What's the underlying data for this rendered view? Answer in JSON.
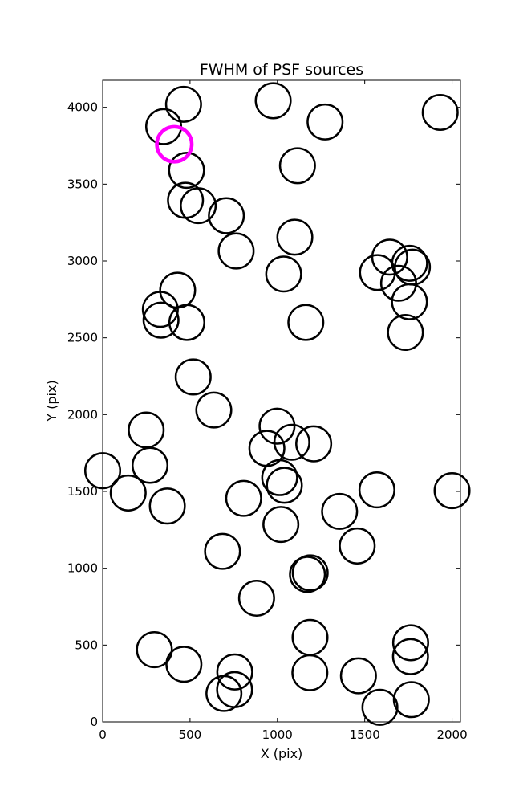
{
  "chart_data": {
    "type": "scatter",
    "title": "FWHM of PSF sources",
    "xlabel": "X (pix)",
    "ylabel": "Y (pix)",
    "xlim": [
      0,
      2048
    ],
    "ylim": [
      0,
      4176
    ],
    "xticks": [
      0,
      500,
      1000,
      1500,
      2000
    ],
    "yticks": [
      0,
      500,
      1000,
      1500,
      2000,
      2500,
      3000,
      3500,
      4000
    ],
    "xtick_labels": [
      "0",
      "500",
      "1000",
      "1500",
      "2000"
    ],
    "ytick_labels": [
      "0",
      "500",
      "1000",
      "1500",
      "2000",
      "2500",
      "3000",
      "3500",
      "4000"
    ],
    "grid": false,
    "marker": "open-circle",
    "circle_radius_x_units": 100,
    "colors": {
      "default": "#000000",
      "highlight": "#ff00ff"
    },
    "highlight": {
      "x": 410,
      "y": 3760
    },
    "points": [
      {
        "x": 463,
        "y": 4020
      },
      {
        "x": 976,
        "y": 4043
      },
      {
        "x": 1273,
        "y": 3905
      },
      {
        "x": 1932,
        "y": 3967
      },
      {
        "x": 349,
        "y": 3875
      },
      {
        "x": 480,
        "y": 3590
      },
      {
        "x": 1115,
        "y": 3620
      },
      {
        "x": 474,
        "y": 3395
      },
      {
        "x": 547,
        "y": 3360
      },
      {
        "x": 708,
        "y": 3295
      },
      {
        "x": 1100,
        "y": 3155
      },
      {
        "x": 764,
        "y": 3065
      },
      {
        "x": 1643,
        "y": 3025
      },
      {
        "x": 1757,
        "y": 2985
      },
      {
        "x": 1773,
        "y": 2960
      },
      {
        "x": 1573,
        "y": 2925
      },
      {
        "x": 1036,
        "y": 2915
      },
      {
        "x": 1694,
        "y": 2855
      },
      {
        "x": 429,
        "y": 2810
      },
      {
        "x": 1756,
        "y": 2735
      },
      {
        "x": 330,
        "y": 2685
      },
      {
        "x": 334,
        "y": 2615
      },
      {
        "x": 482,
        "y": 2600
      },
      {
        "x": 1163,
        "y": 2600
      },
      {
        "x": 1733,
        "y": 2535
      },
      {
        "x": 518,
        "y": 2245
      },
      {
        "x": 636,
        "y": 2030
      },
      {
        "x": 249,
        "y": 1900
      },
      {
        "x": 998,
        "y": 1925
      },
      {
        "x": 1083,
        "y": 1820
      },
      {
        "x": 1208,
        "y": 1810
      },
      {
        "x": 940,
        "y": 1780
      },
      {
        "x": 0,
        "y": 1635
      },
      {
        "x": 271,
        "y": 1670
      },
      {
        "x": 1013,
        "y": 1590
      },
      {
        "x": 1040,
        "y": 1540
      },
      {
        "x": 146,
        "y": 1490
      },
      {
        "x": 1570,
        "y": 1510
      },
      {
        "x": 2000,
        "y": 1505
      },
      {
        "x": 807,
        "y": 1455
      },
      {
        "x": 370,
        "y": 1405
      },
      {
        "x": 1356,
        "y": 1370
      },
      {
        "x": 1020,
        "y": 1285
      },
      {
        "x": 1457,
        "y": 1145
      },
      {
        "x": 686,
        "y": 1110
      },
      {
        "x": 1172,
        "y": 960
      },
      {
        "x": 1188,
        "y": 970
      },
      {
        "x": 881,
        "y": 805
      },
      {
        "x": 1187,
        "y": 550
      },
      {
        "x": 1763,
        "y": 515
      },
      {
        "x": 296,
        "y": 470
      },
      {
        "x": 1762,
        "y": 425
      },
      {
        "x": 465,
        "y": 375
      },
      {
        "x": 756,
        "y": 325
      },
      {
        "x": 1186,
        "y": 320
      },
      {
        "x": 1464,
        "y": 300
      },
      {
        "x": 755,
        "y": 210
      },
      {
        "x": 694,
        "y": 185
      },
      {
        "x": 1767,
        "y": 145
      },
      {
        "x": 1587,
        "y": 95
      }
    ]
  }
}
